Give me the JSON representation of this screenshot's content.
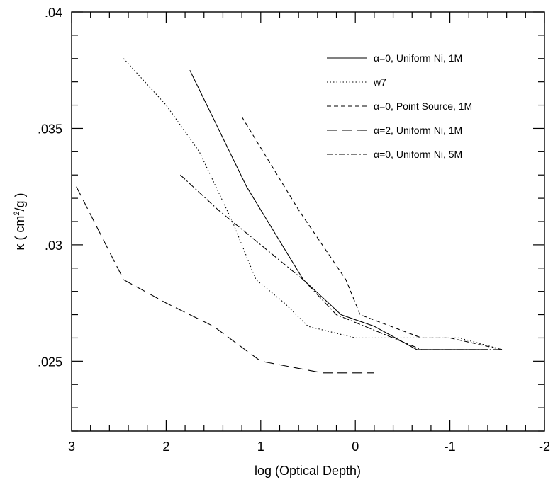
{
  "chart_data": {
    "type": "line",
    "xlabel": "log (Optical Depth)",
    "ylabel": {
      "prefix": "κ ( cm",
      "sup": "2",
      "suffix": "/g )"
    },
    "xlim": [
      3,
      -2
    ],
    "ylim": [
      0.022,
      0.04
    ],
    "x_ticks": [
      {
        "value": 3,
        "label": "3"
      },
      {
        "value": 2,
        "label": "2"
      },
      {
        "value": 1,
        "label": "1"
      },
      {
        "value": 0,
        "label": "0"
      },
      {
        "value": -1,
        "label": "-1"
      },
      {
        "value": -2,
        "label": "-2"
      }
    ],
    "y_ticks": [
      {
        "value": 0.025,
        "label": ".025"
      },
      {
        "value": 0.03,
        "label": ".03"
      },
      {
        "value": 0.035,
        "label": ".035"
      },
      {
        "value": 0.04,
        "label": ".04"
      }
    ],
    "legend_position": "top-right",
    "series": [
      {
        "name": "α=0, Uniform Ni, 1M",
        "dash": "solid",
        "x": [
          1.75,
          1.15,
          0.55,
          0.15,
          -0.2,
          -0.65,
          -1.4
        ],
        "y": [
          0.0375,
          0.0325,
          0.0285,
          0.027,
          0.0265,
          0.0255,
          0.0255
        ]
      },
      {
        "name": "w7",
        "dash": "dotted",
        "x": [
          2.45,
          2.0,
          1.65,
          1.3,
          1.05,
          0.75,
          0.5,
          0.0,
          -0.3,
          -0.8,
          -1.1,
          -1.55
        ],
        "y": [
          0.038,
          0.036,
          0.034,
          0.031,
          0.0285,
          0.0275,
          0.0265,
          0.026,
          0.026,
          0.026,
          0.026,
          0.0255
        ]
      },
      {
        "name": "α=0, Point Source, 1M",
        "dash": "short-dash",
        "x": [
          1.2,
          0.6,
          0.1,
          -0.05,
          -0.7,
          -1.0,
          -1.55
        ],
        "y": [
          0.0355,
          0.0315,
          0.0285,
          0.027,
          0.026,
          0.026,
          0.0255
        ]
      },
      {
        "name": "α=2, Uniform Ni, 1M",
        "dash": "long-dash",
        "x": [
          2.95,
          2.45,
          2.0,
          1.5,
          1.0,
          0.35,
          0.0,
          -0.2
        ],
        "y": [
          0.0325,
          0.0285,
          0.0275,
          0.0265,
          0.025,
          0.0245,
          0.0245,
          0.0245
        ]
      },
      {
        "name": "α=0, Uniform Ni, 5M",
        "dash": "dash-dot",
        "x": [
          1.85,
          1.45,
          1.0,
          0.55,
          0.2,
          -0.7,
          -1.55
        ],
        "y": [
          0.033,
          0.0315,
          0.03,
          0.0285,
          0.027,
          0.0255,
          0.0255
        ]
      }
    ]
  }
}
